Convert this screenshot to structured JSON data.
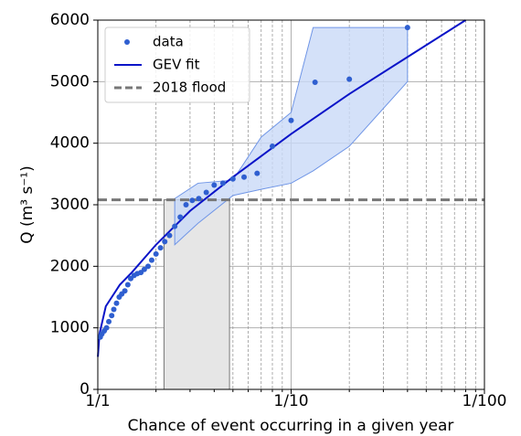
{
  "chart_data": {
    "type": "scatter",
    "xlabel": "Chance of event occurring in a given year",
    "ylabel": "Q (m³ s⁻¹)",
    "log_x": true,
    "xlim": [
      1,
      100
    ],
    "ylim": [
      0,
      6000
    ],
    "xticks": [
      {
        "value": 1,
        "label": "1/1"
      },
      {
        "value": 10,
        "label": "1/10"
      },
      {
        "value": 100,
        "label": "1/100"
      }
    ],
    "xminor_ticks": [
      2,
      3,
      4,
      5,
      6,
      7,
      8,
      9,
      20,
      30,
      40,
      50,
      60,
      70,
      80,
      90
    ],
    "yticks": [
      0,
      1000,
      2000,
      3000,
      4000,
      5000,
      6000
    ],
    "grid": true,
    "legend": "upper left",
    "band": {
      "color": "#c9d9f7",
      "edge": "#6f95e6",
      "x": [
        2.5,
        3.3,
        5,
        7,
        10,
        13,
        20,
        40
      ],
      "upper": [
        3100,
        3350,
        3400,
        4100,
        4500,
        5880,
        5880,
        5880
      ],
      "lower": [
        2350,
        2700,
        3150,
        3250,
        3350,
        3550,
        3950,
        5000
      ]
    },
    "flood_span": {
      "x": [
        2.2,
        4.8
      ],
      "color": "#e6e6e6"
    },
    "series": [
      {
        "name": "data",
        "type": "scatter",
        "color": "#2f5fd0",
        "x": [
          40,
          20,
          13.3,
          10,
          8,
          6.67,
          5.71,
          5,
          4.44,
          4,
          3.64,
          3.33,
          3.08,
          2.86,
          2.67,
          2.5,
          2.35,
          2.22,
          2.11,
          2,
          1.9,
          1.82,
          1.74,
          1.67,
          1.6,
          1.54,
          1.48,
          1.43,
          1.38,
          1.33,
          1.29,
          1.25,
          1.21,
          1.18,
          1.14,
          1.11,
          1.08,
          1.05,
          1.03
        ],
        "values": [
          5880,
          5040,
          4990,
          4370,
          3950,
          3510,
          3450,
          3420,
          3350,
          3320,
          3200,
          3100,
          3070,
          3000,
          2800,
          2650,
          2500,
          2400,
          2300,
          2200,
          2100,
          2000,
          1950,
          1900,
          1880,
          1850,
          1800,
          1700,
          1600,
          1550,
          1500,
          1400,
          1300,
          1200,
          1100,
          1000,
          950,
          900,
          850
        ]
      },
      {
        "name": "GEV fit",
        "type": "line",
        "color": "#0a14c8",
        "x": [
          1.001,
          1.02,
          1.1,
          1.3,
          1.5,
          2,
          3,
          5,
          10,
          20,
          40,
          80
        ],
        "values": [
          530,
          900,
          1350,
          1700,
          1900,
          2350,
          2900,
          3450,
          4150,
          4800,
          5400,
          6000
        ]
      },
      {
        "name": "2018 flood",
        "type": "hline",
        "color": "#777777",
        "value": 3080
      }
    ]
  }
}
